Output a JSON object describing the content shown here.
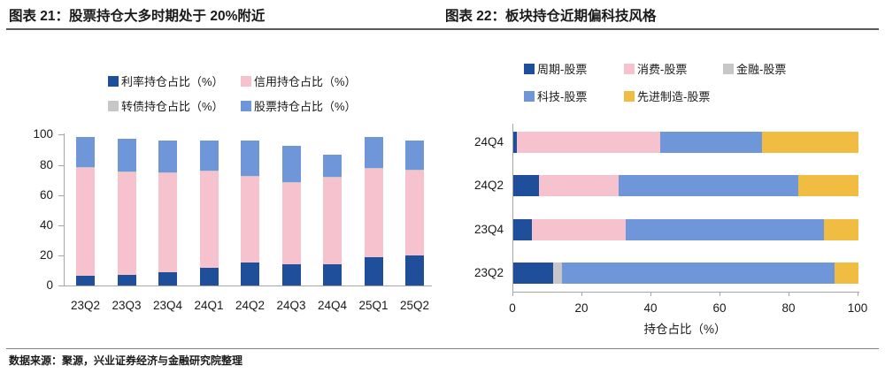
{
  "header": {
    "left_title": "图表 21：股票持仓大多时期处于 20%附近",
    "right_title": "图表 22：板块持仓近期偏科技风格"
  },
  "footer": {
    "source": "数据来源：聚源，兴业证券经济与金融研究院整理"
  },
  "colors": {
    "navy": "#1F4E9B",
    "pink": "#F5C2CE",
    "gray": "#C7C7C7",
    "light_blue": "#6F96D9",
    "yellow": "#F0BC41",
    "axis": "#A6A6A6"
  },
  "chart_data": [
    {
      "id": "fig21",
      "type": "bar",
      "stacked": true,
      "orientation": "vertical",
      "title": "图表 21：股票持仓大多时期处于 20%附近",
      "categories": [
        "23Q2",
        "23Q3",
        "23Q4",
        "24Q1",
        "24Q2",
        "24Q3",
        "24Q4",
        "25Q1",
        "25Q2"
      ],
      "series": [
        {
          "name": "利率持仓占比（%）",
          "color": "#1F4E9B",
          "values": [
            6.5,
            7,
            9,
            12,
            15,
            14,
            14,
            18.5,
            20
          ]
        },
        {
          "name": "信用持仓占比（%）",
          "color": "#F5C2CE",
          "values": [
            71.5,
            68.5,
            65.5,
            64,
            57.5,
            54,
            57.5,
            59,
            56.5
          ]
        },
        {
          "name": "转债持仓占比（%）",
          "color": "#C7C7C7",
          "values": [
            0.4,
            0.4,
            0.4,
            0.4,
            0.4,
            0.4,
            0.4,
            0.4,
            0.4
          ]
        },
        {
          "name": "股票持仓占比（%）",
          "color": "#6F96D9",
          "values": [
            20,
            21.5,
            21.5,
            20,
            23,
            24,
            15,
            20.5,
            19.5
          ]
        }
      ],
      "xlabel": "",
      "ylabel": "",
      "ylim": [
        0,
        100
      ],
      "yticks": [
        0,
        20,
        40,
        60,
        80,
        100
      ],
      "grid": false,
      "legend_position": "top"
    },
    {
      "id": "fig22",
      "type": "bar",
      "stacked": true,
      "orientation": "horizontal",
      "title": "图表 22：板块持仓近期偏科技风格",
      "categories": [
        "24Q4",
        "24Q2",
        "23Q4",
        "23Q2"
      ],
      "series": [
        {
          "name": "周期-股票",
          "color": "#1F4E9B",
          "values": [
            1,
            7.5,
            5.5,
            11.5
          ]
        },
        {
          "name": "消费-股票",
          "color": "#F5C2CE",
          "values": [
            41.5,
            23,
            27,
            0
          ]
        },
        {
          "name": "金融-股票",
          "color": "#C7C7C7",
          "values": [
            0,
            0,
            0,
            2.5
          ]
        },
        {
          "name": "科技-股票",
          "color": "#6F96D9",
          "values": [
            29.5,
            52,
            57.5,
            79
          ]
        },
        {
          "name": "先进制造-股票",
          "color": "#F0BC41",
          "values": [
            28,
            17.5,
            10,
            7
          ]
        }
      ],
      "xlabel": "持仓占比（%）",
      "ylabel": "",
      "xlim": [
        0,
        100
      ],
      "xticks": [
        0,
        20,
        40,
        60,
        80,
        100
      ],
      "grid": false,
      "legend_position": "top"
    }
  ]
}
